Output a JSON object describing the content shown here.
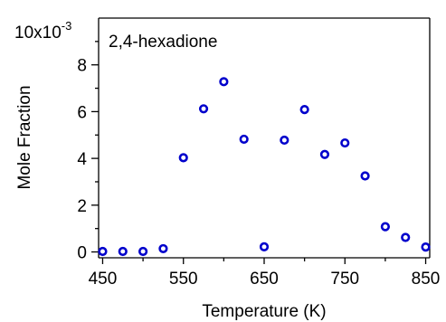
{
  "chart_data": {
    "type": "scatter",
    "annotation": "2,4-hexadione",
    "xlabel": "Temperature (K)",
    "ylabel": "Mole Fraction",
    "y_multiplier_base": "10x10",
    "y_multiplier_exponent": "-3",
    "xlim": [
      445,
      855
    ],
    "ylim": [
      -0.25,
      10
    ],
    "x_ticks": [
      450,
      550,
      650,
      750,
      850
    ],
    "x_tick_labels": [
      "450",
      "550",
      "650",
      "750",
      "850"
    ],
    "x_minor_ticks": [
      500,
      600,
      700,
      800
    ],
    "y_ticks": [
      0,
      2,
      4,
      6,
      8
    ],
    "y_tick_labels": [
      "0",
      "2",
      "4",
      "6",
      "8"
    ],
    "y_minor_ticks": [
      1,
      3,
      5,
      7,
      9
    ],
    "marker": "open-circle",
    "marker_color": "#0000CC",
    "series": [
      {
        "x": [
          450,
          475,
          500,
          525,
          550,
          575,
          600,
          625,
          650,
          675,
          700,
          725,
          750,
          775,
          800,
          825,
          850
        ],
        "y": [
          0.02,
          0.02,
          0.02,
          0.14,
          4.03,
          6.12,
          7.28,
          4.82,
          0.22,
          4.78,
          6.09,
          4.17,
          4.66,
          3.25,
          1.08,
          0.62,
          0.21
        ]
      }
    ]
  }
}
